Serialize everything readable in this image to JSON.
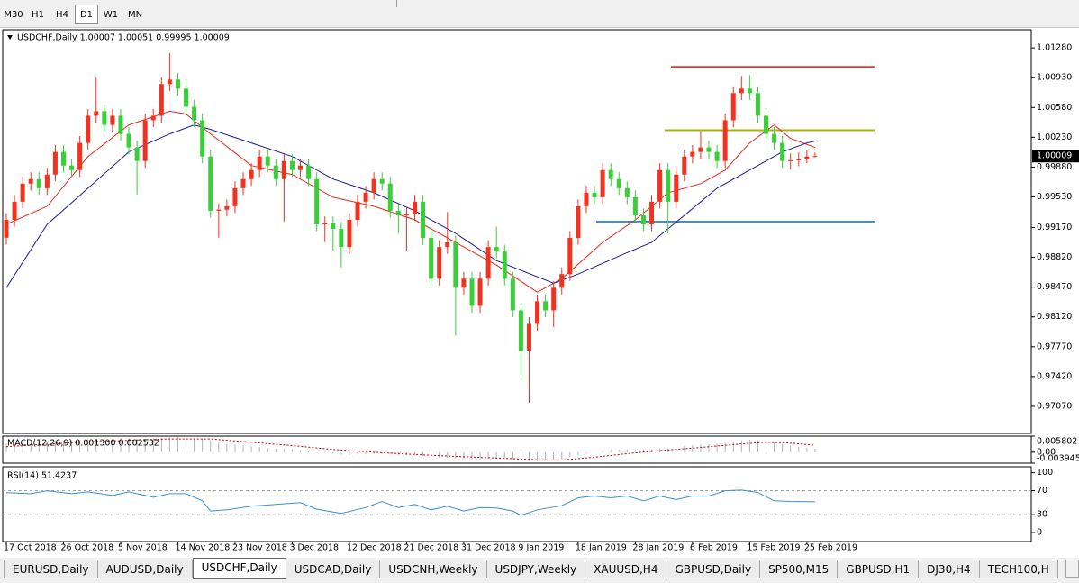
{
  "toolbar": {
    "timeframes": [
      "M30",
      "H1",
      "H4",
      "D1",
      "W1",
      "MN"
    ],
    "active": "D1"
  },
  "chart_data": [
    {
      "type": "candlestick",
      "title": "USDCHF,Daily 1.00007 1.00051 0.99995 1.00009",
      "up_color": "#f0321e",
      "down_color": "#38cf38",
      "categories": [
        "17 Oct 2018",
        null,
        null,
        null,
        null,
        null,
        null,
        "26 Oct 2018",
        null,
        null,
        null,
        null,
        null,
        null,
        "5 Nov 2018",
        null,
        null,
        null,
        null,
        null,
        null,
        "14 Nov 2018",
        null,
        null,
        null,
        null,
        null,
        null,
        "23 Nov 2018",
        null,
        null,
        null,
        null,
        null,
        null,
        "3 Dec 2018",
        null,
        null,
        null,
        null,
        null,
        null,
        "12 Dec 2018",
        null,
        null,
        null,
        null,
        null,
        null,
        "21 Dec 2018",
        null,
        null,
        null,
        null,
        null,
        null,
        "31 Dec 2018",
        null,
        null,
        null,
        null,
        null,
        null,
        "9 Jan 2019",
        null,
        null,
        null,
        null,
        null,
        null,
        "18 Jan 2019",
        null,
        null,
        null,
        null,
        null,
        null,
        "28 Jan 2019",
        null,
        null,
        null,
        null,
        null,
        null,
        "6 Feb 2019",
        null,
        null,
        null,
        null,
        null,
        null,
        "15 Feb 2019",
        null,
        null,
        null,
        null,
        null,
        null,
        "25 Feb 2019",
        null
      ],
      "open": [
        0.9905,
        0.9926,
        0.99473,
        0.99686,
        0.99739,
        0.99632,
        0.99792,
        1.00058,
        0.99898,
        0.99845,
        1.00164,
        1.00483,
        1.00536,
        1.00376,
        1.00483,
        1.0027,
        1.00111,
        0.99951,
        1.0043,
        1.00483,
        1.00855,
        1.00908,
        1.00802,
        1.00589,
        1.0043,
        1.00004,
        0.99367,
        0.9938,
        0.9942,
        0.99632,
        0.99739,
        0.99845,
        1.00004,
        0.99898,
        0.99739,
        0.99951,
        0.99845,
        0.99898,
        0.99739,
        0.99207,
        0.9922,
        0.99154,
        0.98941,
        0.9926,
        0.99473,
        0.99579,
        0.99739,
        0.99686,
        0.99367,
        0.99313,
        0.9933,
        0.99473,
        0.99048,
        0.98569,
        0.98941,
        0.98995,
        0.98463,
        0.98569,
        0.9825,
        0.98569,
        0.98941,
        0.98888,
        0.98569,
        0.98197,
        0.97719,
        0.98038,
        0.98304,
        0.98197,
        0.98463,
        0.98623,
        0.99048,
        0.9942,
        0.99579,
        0.99526,
        0.99845,
        0.99739,
        0.99632,
        0.99526,
        0.99313,
        0.99207,
        0.99473,
        0.99845,
        0.99473,
        0.99792,
        1.00004,
        1.00058,
        1.00111,
        1.00058,
        0.99951,
        1.0043,
        1.00749,
        1.00802,
        1.00749,
        1.00483,
        1.0027,
        1.00164,
        0.99951,
        0.9996,
        0.99973,
        1.00007
      ],
      "high": [
        0.9934,
        0.99553,
        0.99766,
        0.99819,
        0.99819,
        0.99872,
        1.00138,
        1.00138,
        0.99978,
        1.00244,
        1.00563,
        1.0093,
        1.00616,
        1.00563,
        1.00563,
        1.0035,
        1.00191,
        1.0051,
        1.00563,
        1.00935,
        1.0122,
        1.00988,
        1.00882,
        1.00669,
        1.0051,
        1.00084,
        0.9945,
        0.995,
        0.99712,
        0.99819,
        0.99925,
        1.00084,
        1.00084,
        0.99978,
        1.00031,
        1.00031,
        0.99978,
        0.99978,
        0.99819,
        0.993,
        0.993,
        0.99234,
        0.9934,
        0.99553,
        0.99659,
        0.99819,
        0.99819,
        0.99766,
        0.99447,
        0.9941,
        0.99553,
        0.99553,
        0.99128,
        0.99021,
        0.99353,
        0.99075,
        0.98649,
        0.98649,
        0.98649,
        0.99021,
        0.9918,
        0.98968,
        0.98649,
        0.98277,
        0.98118,
        0.98384,
        0.98384,
        0.98543,
        0.98703,
        0.99128,
        0.995,
        0.99659,
        0.99659,
        0.99925,
        0.99925,
        0.99819,
        0.99712,
        0.99606,
        0.99393,
        0.99553,
        0.99925,
        0.99925,
        0.99872,
        1.00084,
        1.00138,
        1.003,
        1.00191,
        1.00138,
        1.0051,
        1.00829,
        1.0095,
        1.0096,
        1.00829,
        1.00563,
        1.0035,
        1.00244,
        1.0004,
        1.00053,
        1.00084,
        1.00051
      ],
      "low": [
        0.9897,
        0.9918,
        0.99393,
        0.99606,
        0.99552,
        0.99552,
        0.99712,
        0.99818,
        0.99765,
        0.99765,
        1.00084,
        1.00403,
        1.00296,
        1.00296,
        1.0019,
        1.00031,
        0.9956,
        0.99871,
        1.0035,
        1.00403,
        1.00775,
        1.00722,
        1.00509,
        1.0035,
        0.99924,
        0.99287,
        0.9905,
        0.993,
        0.9934,
        0.99552,
        0.99659,
        0.99765,
        0.99818,
        0.99659,
        0.9924,
        0.99765,
        0.99765,
        0.99659,
        0.99127,
        0.99,
        0.989,
        0.987,
        0.98861,
        0.9918,
        0.99393,
        0.99499,
        0.99606,
        0.99287,
        0.991,
        0.989,
        0.9925,
        0.98968,
        0.98489,
        0.98489,
        0.98861,
        0.979,
        0.98383,
        0.9817,
        0.9817,
        0.98489,
        0.98808,
        0.98489,
        0.98117,
        0.9742,
        0.9711,
        0.97958,
        0.98117,
        0.98,
        0.98383,
        0.98543,
        0.98968,
        0.9934,
        0.99446,
        0.99446,
        0.99659,
        0.99552,
        0.99446,
        0.99233,
        0.99127,
        0.99127,
        0.99393,
        0.991,
        0.99393,
        0.99712,
        0.99924,
        0.99978,
        0.99978,
        0.99871,
        0.99871,
        1.0035,
        1.00669,
        1.00669,
        1.00403,
        1.0019,
        1.00084,
        0.99871,
        0.9985,
        0.9989,
        0.99924,
        0.99995
      ],
      "close": [
        0.9926,
        0.99473,
        0.99686,
        0.99739,
        0.99632,
        0.99792,
        1.00058,
        0.99898,
        0.99845,
        1.00164,
        1.00483,
        1.00536,
        1.00376,
        1.00483,
        1.0027,
        1.00111,
        0.99951,
        1.0043,
        1.00483,
        1.00855,
        1.00908,
        1.00802,
        1.00589,
        1.0043,
        1.00004,
        0.99367,
        0.9938,
        0.9942,
        0.99632,
        0.99739,
        0.99845,
        1.00004,
        0.99898,
        0.99739,
        0.99951,
        0.99845,
        0.99898,
        0.99739,
        0.99207,
        0.9922,
        0.99154,
        0.98941,
        0.9926,
        0.99473,
        0.99579,
        0.99739,
        0.99686,
        0.99367,
        0.99313,
        0.9933,
        0.99473,
        0.99048,
        0.98569,
        0.98941,
        0.98995,
        0.98463,
        0.98569,
        0.9825,
        0.98569,
        0.98941,
        0.98888,
        0.98569,
        0.98197,
        0.97719,
        0.98038,
        0.98304,
        0.98197,
        0.98463,
        0.98623,
        0.99048,
        0.9942,
        0.99579,
        0.99526,
        0.99845,
        0.99739,
        0.99632,
        0.99526,
        0.99313,
        0.99207,
        0.99473,
        0.99845,
        0.99473,
        0.99792,
        1.00004,
        1.00058,
        1.00111,
        1.00058,
        0.99951,
        1.0043,
        1.00749,
        1.00802,
        1.00749,
        1.00483,
        1.0027,
        1.00164,
        0.99951,
        0.9996,
        0.99973,
        1.00004,
        1.00009
      ],
      "series": [
        {
          "color": "#e8261c",
          "x": [
            0,
            5,
            10,
            15,
            20,
            22,
            25,
            30,
            35,
            40,
            45,
            50,
            55,
            60,
            65,
            68,
            73,
            77,
            81,
            85,
            88,
            91,
            94,
            96,
            99
          ],
          "values": [
            0.99207,
            0.9942,
            1.00004,
            1.00376,
            1.00536,
            1.00504,
            1.0027,
            0.99898,
            0.99792,
            0.99526,
            0.9942,
            0.9926,
            0.98995,
            0.98729,
            0.9841,
            0.98569,
            0.98995,
            0.9926,
            0.99579,
            0.99686,
            0.99845,
            1.00164,
            1.00376,
            1.00217,
            1.00111
          ]
        },
        {
          "color": "#1c1c9c",
          "x": [
            0,
            5,
            10,
            15,
            20,
            23,
            25,
            30,
            35,
            40,
            45,
            50,
            55,
            60,
            67,
            70,
            75,
            79,
            83,
            87,
            91,
            95,
            98,
            99
          ],
          "values": [
            0.98463,
            0.99207,
            0.99632,
            1.00058,
            1.0027,
            1.00376,
            1.00323,
            1.00164,
            1.00004,
            0.99739,
            0.99579,
            0.99367,
            0.99101,
            0.98782,
            0.98516,
            0.98623,
            0.98835,
            0.98995,
            0.99313,
            0.99632,
            0.99845,
            1.00058,
            1.00164,
            1.00185
          ]
        }
      ],
      "levels": [
        {
          "value": 1.01057,
          "color": "#f03030"
        },
        {
          "value": 1.00313,
          "color": "#a8b400"
        },
        {
          "value": 0.99239,
          "color": "#3b8fde"
        }
      ],
      "ylim": [
        0.96752,
        1.01493
      ],
      "yticks": [
        {
          "value": 1.0128,
          "label": "1.01280"
        },
        {
          "value": 1.0093,
          "label": "1.00930"
        },
        {
          "value": 1.0058,
          "label": "1.00580"
        },
        {
          "value": 1.0023,
          "label": "1.00230"
        },
        {
          "value": 0.9988,
          "label": "0.99880"
        },
        {
          "value": 0.9953,
          "label": "0.99530"
        },
        {
          "value": 0.9917,
          "label": "0.99170"
        },
        {
          "value": 0.9882,
          "label": "0.98820"
        },
        {
          "value": 0.9847,
          "label": "0.98470"
        },
        {
          "value": 0.9812,
          "label": "0.98120"
        },
        {
          "value": 0.9777,
          "label": "0.97770"
        },
        {
          "value": 0.9742,
          "label": "0.97420"
        },
        {
          "value": 0.9707,
          "label": "0.97070"
        }
      ]
    },
    {
      "type": "bar",
      "title": "MACD(12,26,9) 0.001300 0.002532",
      "color": "#b0b0b0",
      "values": [
        0.003,
        0.0032,
        0.0034,
        0.0036,
        0.0038,
        0.0039,
        0.0041,
        0.0042,
        0.0043,
        0.0044,
        0.0046,
        0.0048,
        0.0049,
        0.005,
        0.005,
        0.005,
        0.0048,
        0.0049,
        0.005,
        0.0052,
        0.0054,
        0.0055,
        0.0054,
        0.0052,
        0.0048,
        0.0042,
        0.0036,
        0.0031,
        0.0027,
        0.0024,
        0.0021,
        0.0019,
        0.0016,
        0.0013,
        0.0012,
        0.001,
        0.0008,
        0.0005,
        0.0001,
        -0.0003,
        -0.0006,
        -0.0009,
        -0.0009,
        -0.0008,
        -0.0007,
        -0.0006,
        -0.0006,
        -0.0008,
        -0.001,
        -0.0011,
        -0.0011,
        -0.0014,
        -0.0018,
        -0.0019,
        -0.002,
        -0.0023,
        -0.0024,
        -0.0026,
        -0.0026,
        -0.0024,
        -0.0023,
        -0.0024,
        -0.0027,
        -0.0031,
        -0.0032,
        -0.0031,
        -0.003,
        -0.0028,
        -0.0024,
        -0.0018,
        -0.0011,
        -0.0005,
        0.0,
        0.0005,
        0.0008,
        0.001,
        0.0011,
        0.001,
        0.0009,
        0.0011,
        0.0015,
        0.0015,
        0.0018,
        0.0022,
        0.0025,
        0.0028,
        0.003,
        0.003,
        0.0034,
        0.0039,
        0.0043,
        0.0045,
        0.0044,
        0.004,
        0.0035,
        0.003,
        0.0024,
        0.0019,
        0.0016,
        0.0013
      ],
      "signal": {
        "color": "#cc0000",
        "x": [
          0,
          10,
          20,
          25,
          30,
          35,
          40,
          45,
          50,
          55,
          60,
          65,
          68,
          72,
          76,
          80,
          85,
          90,
          93,
          96,
          99
        ],
        "values": [
          0.002,
          0.0038,
          0.0048,
          0.0048,
          0.0036,
          0.0024,
          0.001,
          0.0,
          -0.0008,
          -0.0015,
          -0.0021,
          -0.0027,
          -0.0028,
          -0.0018,
          -0.0005,
          0.0006,
          0.0017,
          0.003,
          0.0036,
          0.0033,
          0.002532
        ]
      },
      "ylim": [
        -0.003945,
        0.005802
      ],
      "yticks": [
        0.005802,
        {
          "value": 0,
          "label": "0.00"
        },
        -0.003945
      ]
    },
    {
      "type": "line",
      "title": "RSI(14) 51.4237",
      "color": "#3a8fd9",
      "x": [
        0,
        3,
        5,
        8,
        10,
        13,
        15,
        18,
        20,
        22,
        24,
        25,
        27,
        30,
        33,
        36,
        38,
        41,
        44,
        46,
        48,
        50,
        52,
        54,
        56,
        58,
        60,
        62,
        63,
        65,
        68,
        70,
        72,
        74,
        76,
        78,
        80,
        82,
        84,
        86,
        88,
        90,
        92,
        94,
        96,
        99
      ],
      "values": [
        66.7,
        65,
        70,
        65,
        68,
        62,
        68,
        59,
        65,
        65,
        53,
        36,
        38,
        44,
        47,
        50,
        39,
        32,
        42,
        52,
        42,
        47,
        38,
        44,
        36,
        42,
        41,
        36,
        29,
        38,
        45,
        58,
        61,
        58,
        61,
        53,
        61,
        55,
        61,
        61,
        70,
        71,
        67,
        53,
        52,
        51.4237
      ],
      "levels": [
        70,
        30
      ],
      "ylim": [
        -15,
        110
      ],
      "yticks": [
        100,
        70,
        30,
        0
      ]
    }
  ],
  "tabs": {
    "items": [
      "EURUSD,Daily",
      "AUDUSD,Daily",
      "USDCHF,Daily",
      "USDCAD,Daily",
      "USDCNH,Weekly",
      "USDJPY,Weekly",
      "XAUUSD,H4",
      "GBPUSD,Daily",
      "SP500,M15",
      "GBPUSD,H1",
      "DJ30,H4",
      "TECH100,H"
    ],
    "active": 2
  }
}
